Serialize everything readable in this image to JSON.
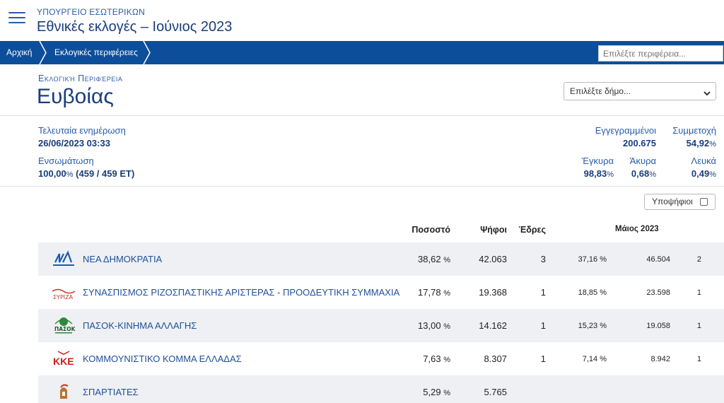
{
  "header": {
    "ministry": "ΥΠΟΥΡΓΕΙΟ ΕΣΩΤΕΡΙΚΩΝ",
    "title": "Εθνικές εκλογές – Ιούνιος 2023"
  },
  "nav": {
    "home": "Αρχική",
    "regions": "Εκλογικές περιφέρειες",
    "search_placeholder": "Επιλέξτε περιφέρεια..."
  },
  "region": {
    "label": "Εκλογική Περιφέρεια",
    "name": "Ευβοίας",
    "municipality_select": "Επιλέξτε δήμο..."
  },
  "stats": {
    "last_update_label": "Τελευταία ενημέρωση",
    "last_update_value": "26/06/2023 03:33",
    "integration_label": "Ενσωμάτωση",
    "integration_pct": "100,00",
    "integration_detail": "(459 / 459 ΕΤ)",
    "registered_label": "Εγγεγραμμένοι",
    "registered_value": "200.675",
    "turnout_label": "Συμμετοχή",
    "turnout_value": "54,92",
    "valid_label": "Έγκυρα",
    "valid_value": "98,83",
    "invalid_label": "Άκυρα",
    "invalid_value": "0,68",
    "blank_label": "Λευκά",
    "blank_value": "0,49",
    "pct_unit": "%"
  },
  "candidates_toggle": "Υποψήφιοι",
  "table": {
    "col_pct": "Ποσοστό",
    "col_votes": "Ψήφοι",
    "col_seats": "Έδρες",
    "col_may": "Μάιος 2023",
    "unit": "%",
    "rows": [
      {
        "name": "ΝΕΑ ΔΗΜΟΚΡΑΤΙΑ",
        "logo": "nd-logo",
        "pct": "38,62",
        "votes": "42.063",
        "seats": "3",
        "may_pct": "37,16",
        "may_votes": "46.504",
        "may_seats": "2"
      },
      {
        "name": "ΣΥΝΑΣΠΙΣΜΟΣ ΡΙΖΟΣΠΑΣΤΙΚΗΣ ΑΡΙΣΤΕΡΑΣ - ΠΡΟΟΔΕΥΤΙΚΗ ΣΥΜΜΑΧΙΑ",
        "logo": "syriza-logo",
        "pct": "17,78",
        "votes": "19.368",
        "seats": "1",
        "may_pct": "18,85",
        "may_votes": "23.598",
        "may_seats": "1"
      },
      {
        "name": "ΠΑΣΟΚ-ΚΙΝΗΜΑ ΑΛΛΑΓΗΣ",
        "logo": "pasok-logo",
        "pct": "13,00",
        "votes": "14.162",
        "seats": "1",
        "may_pct": "15,23",
        "may_votes": "19.058",
        "may_seats": "1"
      },
      {
        "name": "ΚΟΜΜΟΥΝΙΣΤΙΚΟ ΚΟΜΜΑ ΕΛΛΑΔΑΣ",
        "logo": "kke-logo",
        "pct": "7,63",
        "votes": "8.307",
        "seats": "1",
        "may_pct": "7,14",
        "may_votes": "8.942",
        "may_seats": "1"
      },
      {
        "name": "ΣΠΑΡΤΙΑΤΕΣ",
        "logo": "spartiates-logo",
        "pct": "5,29",
        "votes": "5.765",
        "seats": "",
        "may_pct": "",
        "may_votes": "",
        "may_seats": ""
      }
    ]
  },
  "colors": {
    "nav_bg": "#0d4e9b",
    "title": "#1a3d7c",
    "link": "#1f4f9a",
    "row_shade": "#eef0f3"
  }
}
